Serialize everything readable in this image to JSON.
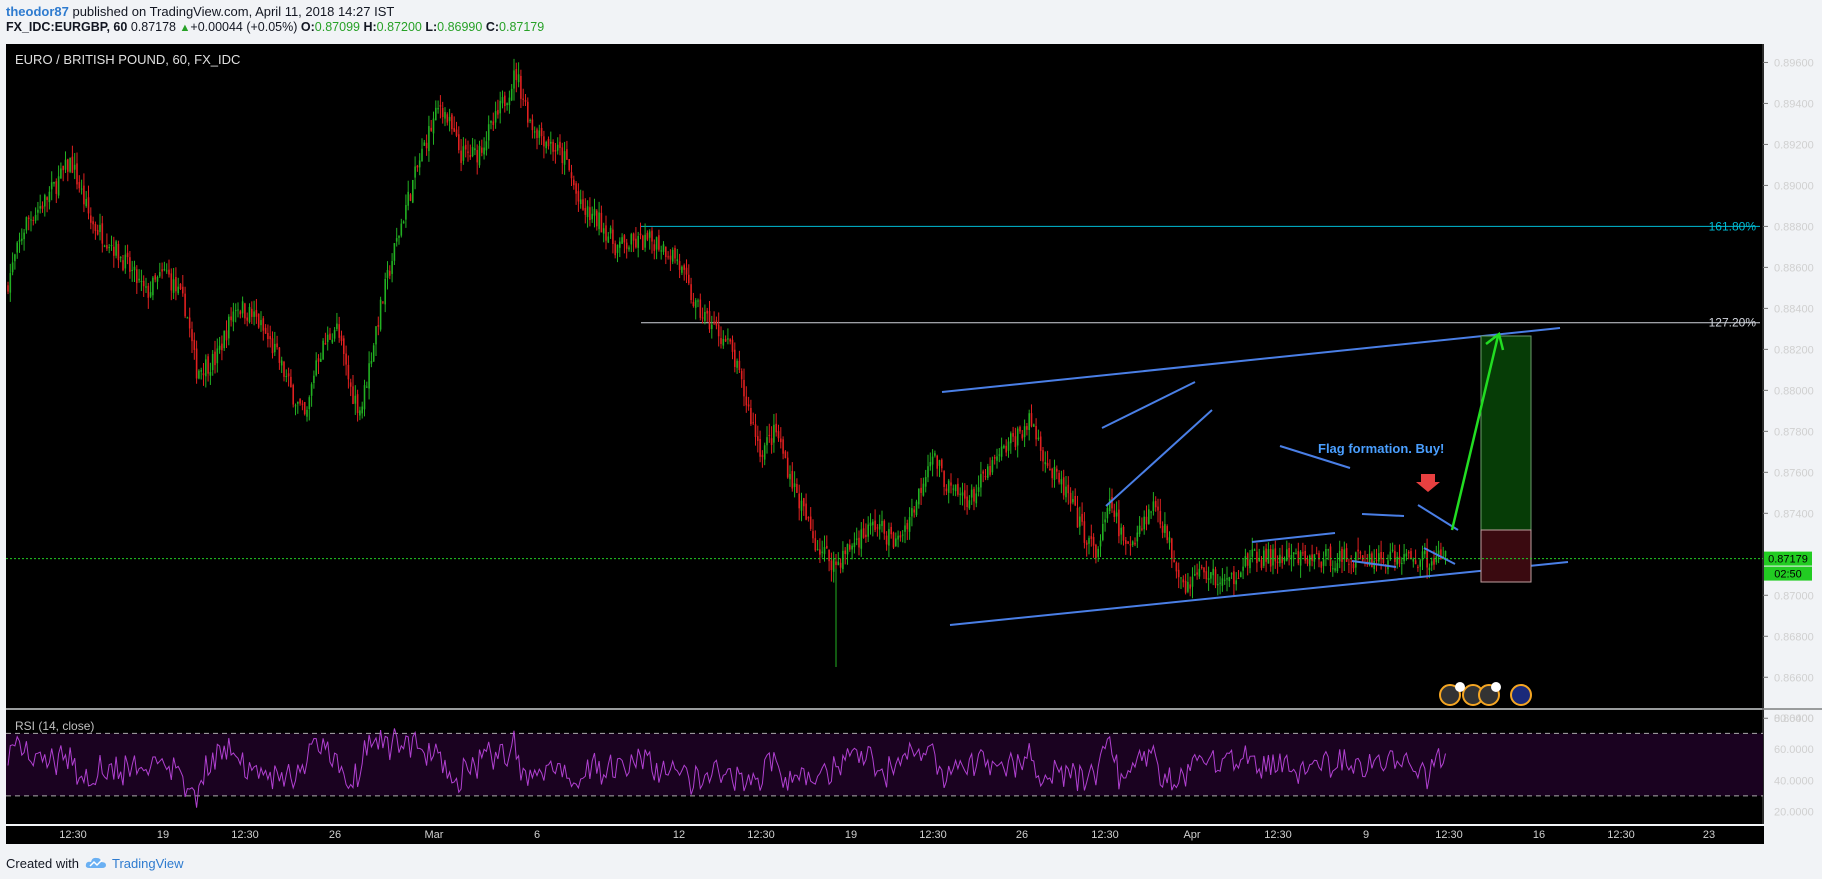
{
  "header": {
    "author": "theodor87",
    "published": "published on TradingView.com, April 11, 2018 14:27 IST",
    "symbol": "FX_IDC:EURGBP, 60",
    "last": "0.87178",
    "change": "+0.00044 (+0.05%)",
    "o_label": "O:",
    "o_val": "0.87099",
    "h_label": "H:",
    "h_val": "0.87200",
    "l_label": "L:",
    "l_val": "0.86990",
    "c_label": "C:",
    "c_val": "0.87179"
  },
  "footer": {
    "created_with": "Created with",
    "brand": "TradingView"
  },
  "chart_data": {
    "type": "candlestick",
    "title": "EURO / BRITISH POUND, 60, FX_IDC",
    "price_axis": {
      "ylim": [
        0.8645,
        0.8969
      ],
      "ticks": [
        "0.89600",
        "0.89400",
        "0.89200",
        "0.89000",
        "0.88800",
        "0.88600",
        "0.88400",
        "0.88200",
        "0.88000",
        "0.87800",
        "0.87600",
        "0.87400",
        "0.87000",
        "0.86800",
        "0.86600",
        "0.86400"
      ]
    },
    "time_axis": {
      "ticks": [
        "12:30",
        "19",
        "12:30",
        "26",
        "Mar",
        "6",
        "12",
        "12:30",
        "19",
        "12:30",
        "26",
        "12:30",
        "Apr",
        "12:30",
        "9",
        "12:30",
        "16",
        "12:30",
        "23"
      ]
    },
    "current_price": {
      "value": 0.87179,
      "label": "0.87179",
      "countdown": "02:50"
    },
    "fib_levels": [
      {
        "label": "161.80%",
        "value": 0.888,
        "color": "#00bcd4"
      },
      {
        "label": "127.20%",
        "value": 0.8833,
        "color": "#d1d4dc"
      }
    ],
    "annotation": "Flag formation. Buy!",
    "series": [
      {
        "name": "close",
        "colors": {
          "up": "#22b022",
          "down": "#e02020"
        },
        "anchors": [
          [
            0,
            0.885
          ],
          [
            20,
            0.8882
          ],
          [
            40,
            0.8893
          ],
          [
            65,
            0.8912
          ],
          [
            85,
            0.8882
          ],
          [
            105,
            0.8872
          ],
          [
            125,
            0.8858
          ],
          [
            140,
            0.8847
          ],
          [
            160,
            0.8858
          ],
          [
            180,
            0.884
          ],
          [
            190,
            0.881
          ],
          [
            210,
            0.8815
          ],
          [
            230,
            0.8842
          ],
          [
            250,
            0.8835
          ],
          [
            270,
            0.8818
          ],
          [
            285,
            0.88
          ],
          [
            300,
            0.8785
          ],
          [
            310,
            0.8815
          ],
          [
            330,
            0.8832
          ],
          [
            345,
            0.88
          ],
          [
            355,
            0.879
          ],
          [
            370,
            0.883
          ],
          [
            385,
            0.8862
          ],
          [
            400,
            0.889
          ],
          [
            420,
            0.8922
          ],
          [
            435,
            0.894
          ],
          [
            455,
            0.8915
          ],
          [
            470,
            0.8915
          ],
          [
            490,
            0.8932
          ],
          [
            510,
            0.8955
          ],
          [
            525,
            0.893
          ],
          [
            545,
            0.892
          ],
          [
            560,
            0.8912
          ],
          [
            575,
            0.8888
          ],
          [
            595,
            0.8882
          ],
          [
            610,
            0.887
          ],
          [
            630,
            0.8872
          ],
          [
            650,
            0.8873
          ],
          [
            670,
            0.8865
          ],
          [
            690,
            0.884
          ],
          [
            710,
            0.883
          ],
          [
            725,
            0.882
          ],
          [
            740,
            0.8795
          ],
          [
            755,
            0.877
          ],
          [
            770,
            0.878
          ],
          [
            790,
            0.875
          ],
          [
            810,
            0.8725
          ],
          [
            830,
            0.8715
          ],
          [
            850,
            0.8727
          ],
          [
            870,
            0.8735
          ],
          [
            890,
            0.8725
          ],
          [
            910,
            0.8745
          ],
          [
            925,
            0.877
          ],
          [
            945,
            0.875
          ],
          [
            965,
            0.8747
          ],
          [
            985,
            0.8762
          ],
          [
            1005,
            0.8775
          ],
          [
            1025,
            0.8785
          ],
          [
            1045,
            0.876
          ],
          [
            1060,
            0.875
          ],
          [
            1075,
            0.8733
          ],
          [
            1090,
            0.872
          ],
          [
            1105,
            0.8745
          ],
          [
            1120,
            0.8722
          ],
          [
            1135,
            0.8735
          ],
          [
            1150,
            0.8745
          ],
          [
            1165,
            0.8722
          ],
          [
            1180,
            0.8705
          ],
          [
            1195,
            0.8712
          ],
          [
            1210,
            0.8708
          ],
          [
            1222,
            0.8705
          ],
          [
            1235,
            0.8715
          ],
          [
            1248,
            0.87179
          ]
        ]
      }
    ],
    "rsi": {
      "name": "RSI (14, close)",
      "ylim": [
        12,
        85
      ],
      "ticks": [
        "80.0000",
        "60.0000",
        "40.0000",
        "20.0000"
      ],
      "bands": [
        70,
        30
      ]
    },
    "colors": {
      "background": "#000000",
      "up": "#22b022",
      "down": "#e02020",
      "trend": "#4a7fe6",
      "rsi_line": "#b040d0",
      "rsi_fill": "#1a0220",
      "current": "#22cc22",
      "tp_fill": "#063c06",
      "sl_fill": "#3a0a10"
    }
  }
}
